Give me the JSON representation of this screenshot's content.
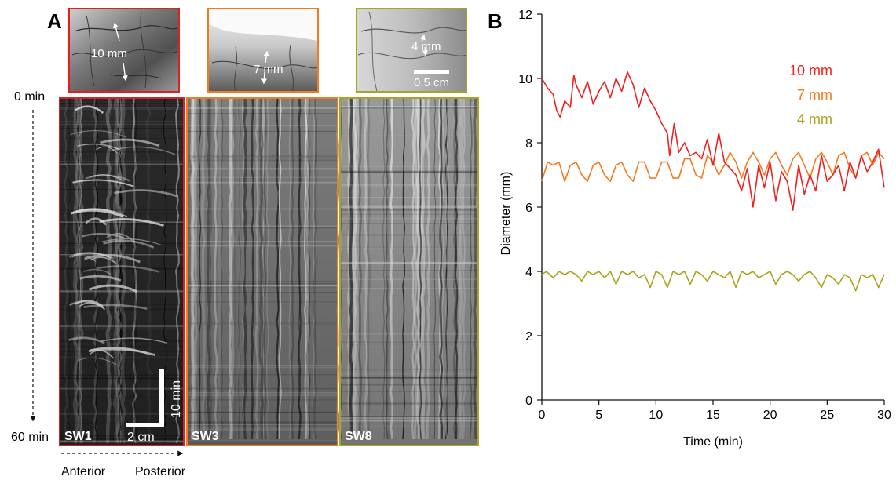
{
  "panel_a": {
    "letter": "A",
    "time_start": "0 min",
    "time_end": "60 min",
    "axis_left": "Anterior",
    "axis_right": "Posterior",
    "photos": [
      {
        "label": "10 mm",
        "color": "#e0201e"
      },
      {
        "label": "7 mm",
        "color": "#f47a20"
      },
      {
        "label": "4 mm",
        "color": "#a8a428"
      }
    ],
    "photo_scale_label": "0.5 cm",
    "kymographs": [
      {
        "label": "SW1",
        "color": "#e0201e"
      },
      {
        "label": "SW3",
        "color": "#f47a20"
      },
      {
        "label": "SW8",
        "color": "#a8a428"
      }
    ],
    "scale_time_label": "10 min",
    "scale_space_label": "2 cm"
  },
  "chart_data": {
    "type": "line",
    "letter": "B",
    "xlabel": "Time (min)",
    "ylabel": "Diameter (mm)",
    "xlim": [
      0,
      30
    ],
    "ylim": [
      0,
      12
    ],
    "xticks": [
      0,
      5,
      10,
      15,
      20,
      25,
      30
    ],
    "yticks": [
      0,
      2,
      4,
      6,
      8,
      10,
      12
    ],
    "grid": false,
    "legend_position": "top-right",
    "series": [
      {
        "name": "10 mm",
        "color": "#f0201e",
        "x": [
          0,
          0.5,
          1,
          1.3,
          1.6,
          2,
          2.5,
          2.8,
          3,
          3.5,
          4,
          4.5,
          5,
          5.5,
          6,
          6.5,
          7,
          7.5,
          8,
          8.5,
          9,
          9.5,
          10,
          10.5,
          11,
          11.2,
          11.6,
          12,
          12.5,
          13,
          13.5,
          14,
          14.5,
          15,
          15.5,
          16,
          16.5,
          17,
          17.5,
          18,
          18.5,
          19,
          19.5,
          20,
          20.5,
          21,
          21.5,
          22,
          22.5,
          23,
          23.5,
          24,
          24.5,
          25,
          25.5,
          26,
          26.5,
          27,
          27.5,
          28,
          28.5,
          29,
          29.5,
          30
        ],
        "y": [
          10.0,
          9.7,
          9.5,
          9.0,
          8.8,
          9.3,
          9.1,
          10.1,
          9.8,
          9.4,
          9.9,
          9.2,
          9.6,
          9.9,
          9.4,
          10.0,
          9.6,
          10.2,
          9.8,
          9.1,
          9.7,
          9.3,
          9.0,
          8.6,
          8.3,
          7.6,
          8.6,
          7.7,
          8.0,
          7.6,
          7.7,
          7.5,
          8.1,
          7.3,
          8.3,
          7.4,
          7.2,
          7.0,
          6.5,
          7.2,
          6.0,
          7.3,
          6.6,
          7.4,
          6.2,
          7.1,
          6.8,
          5.9,
          7.3,
          6.4,
          7.0,
          6.5,
          7.6,
          6.8,
          7.0,
          7.3,
          6.5,
          7.4,
          6.9,
          7.6,
          7.1,
          7.4,
          7.8,
          6.6
        ]
      },
      {
        "name": "7 mm",
        "color": "#f47a20",
        "x": [
          0,
          0.5,
          1,
          1.5,
          2,
          2.5,
          3,
          3.5,
          4,
          4.5,
          5,
          5.5,
          6,
          6.5,
          7,
          7.5,
          8,
          8.5,
          9,
          9.5,
          10,
          10.5,
          11,
          11.5,
          12,
          12.5,
          13,
          13.5,
          14,
          14.5,
          15,
          15.5,
          16,
          16.5,
          17,
          17.5,
          18,
          18.5,
          19,
          19.5,
          20,
          20.5,
          21,
          21.5,
          22,
          22.5,
          23,
          23.5,
          24,
          24.5,
          25,
          25.5,
          26,
          26.5,
          27,
          27.5,
          28,
          28.5,
          29,
          29.5,
          30
        ],
        "y": [
          6.8,
          7.4,
          7.3,
          7.4,
          6.8,
          7.3,
          7.4,
          7.0,
          6.8,
          7.3,
          7.4,
          7.0,
          6.8,
          7.3,
          7.4,
          7.0,
          6.8,
          7.4,
          7.4,
          6.9,
          6.9,
          7.4,
          7.4,
          6.9,
          6.9,
          7.5,
          7.5,
          7.0,
          6.9,
          7.6,
          7.4,
          7.0,
          7.3,
          7.7,
          7.4,
          6.9,
          7.4,
          7.7,
          7.4,
          7.0,
          7.5,
          7.7,
          7.3,
          7.0,
          7.5,
          7.7,
          7.3,
          6.9,
          7.5,
          7.7,
          7.4,
          7.0,
          7.6,
          7.7,
          7.2,
          6.9,
          7.6,
          7.7,
          7.3,
          7.7,
          7.5
        ]
      },
      {
        "name": "4 mm",
        "color": "#aaa31c",
        "x": [
          0,
          0.4,
          1,
          1.5,
          2,
          2.5,
          3,
          3.5,
          4,
          4.5,
          5,
          5.5,
          6,
          6.5,
          7,
          7.5,
          8,
          8.5,
          9,
          9.5,
          10,
          10.5,
          11,
          11.5,
          12,
          12.5,
          13,
          13.5,
          14,
          14.5,
          15,
          15.5,
          16,
          16.5,
          17,
          17.5,
          18,
          18.5,
          19,
          19.5,
          20,
          20.5,
          21,
          21.5,
          22,
          22.5,
          23,
          23.5,
          24,
          24.5,
          25,
          25.5,
          26,
          26.5,
          27,
          27.5,
          28,
          28.5,
          29,
          29.5,
          30
        ],
        "y": [
          3.9,
          4.0,
          3.8,
          4.0,
          3.9,
          4.0,
          3.9,
          3.7,
          4.0,
          3.9,
          4.0,
          3.8,
          4.0,
          3.6,
          4.0,
          3.9,
          4.0,
          3.8,
          3.9,
          3.5,
          4.0,
          3.9,
          3.5,
          4.0,
          3.9,
          4.0,
          3.6,
          4.0,
          3.9,
          3.7,
          4.0,
          3.9,
          3.8,
          4.0,
          3.5,
          4.0,
          3.9,
          4.0,
          3.8,
          3.9,
          4.0,
          3.6,
          3.9,
          4.0,
          3.9,
          3.7,
          3.9,
          4.0,
          3.8,
          3.5,
          3.9,
          3.8,
          3.6,
          3.9,
          3.8,
          3.4,
          3.9,
          3.8,
          3.9,
          3.5,
          3.9
        ]
      }
    ]
  }
}
